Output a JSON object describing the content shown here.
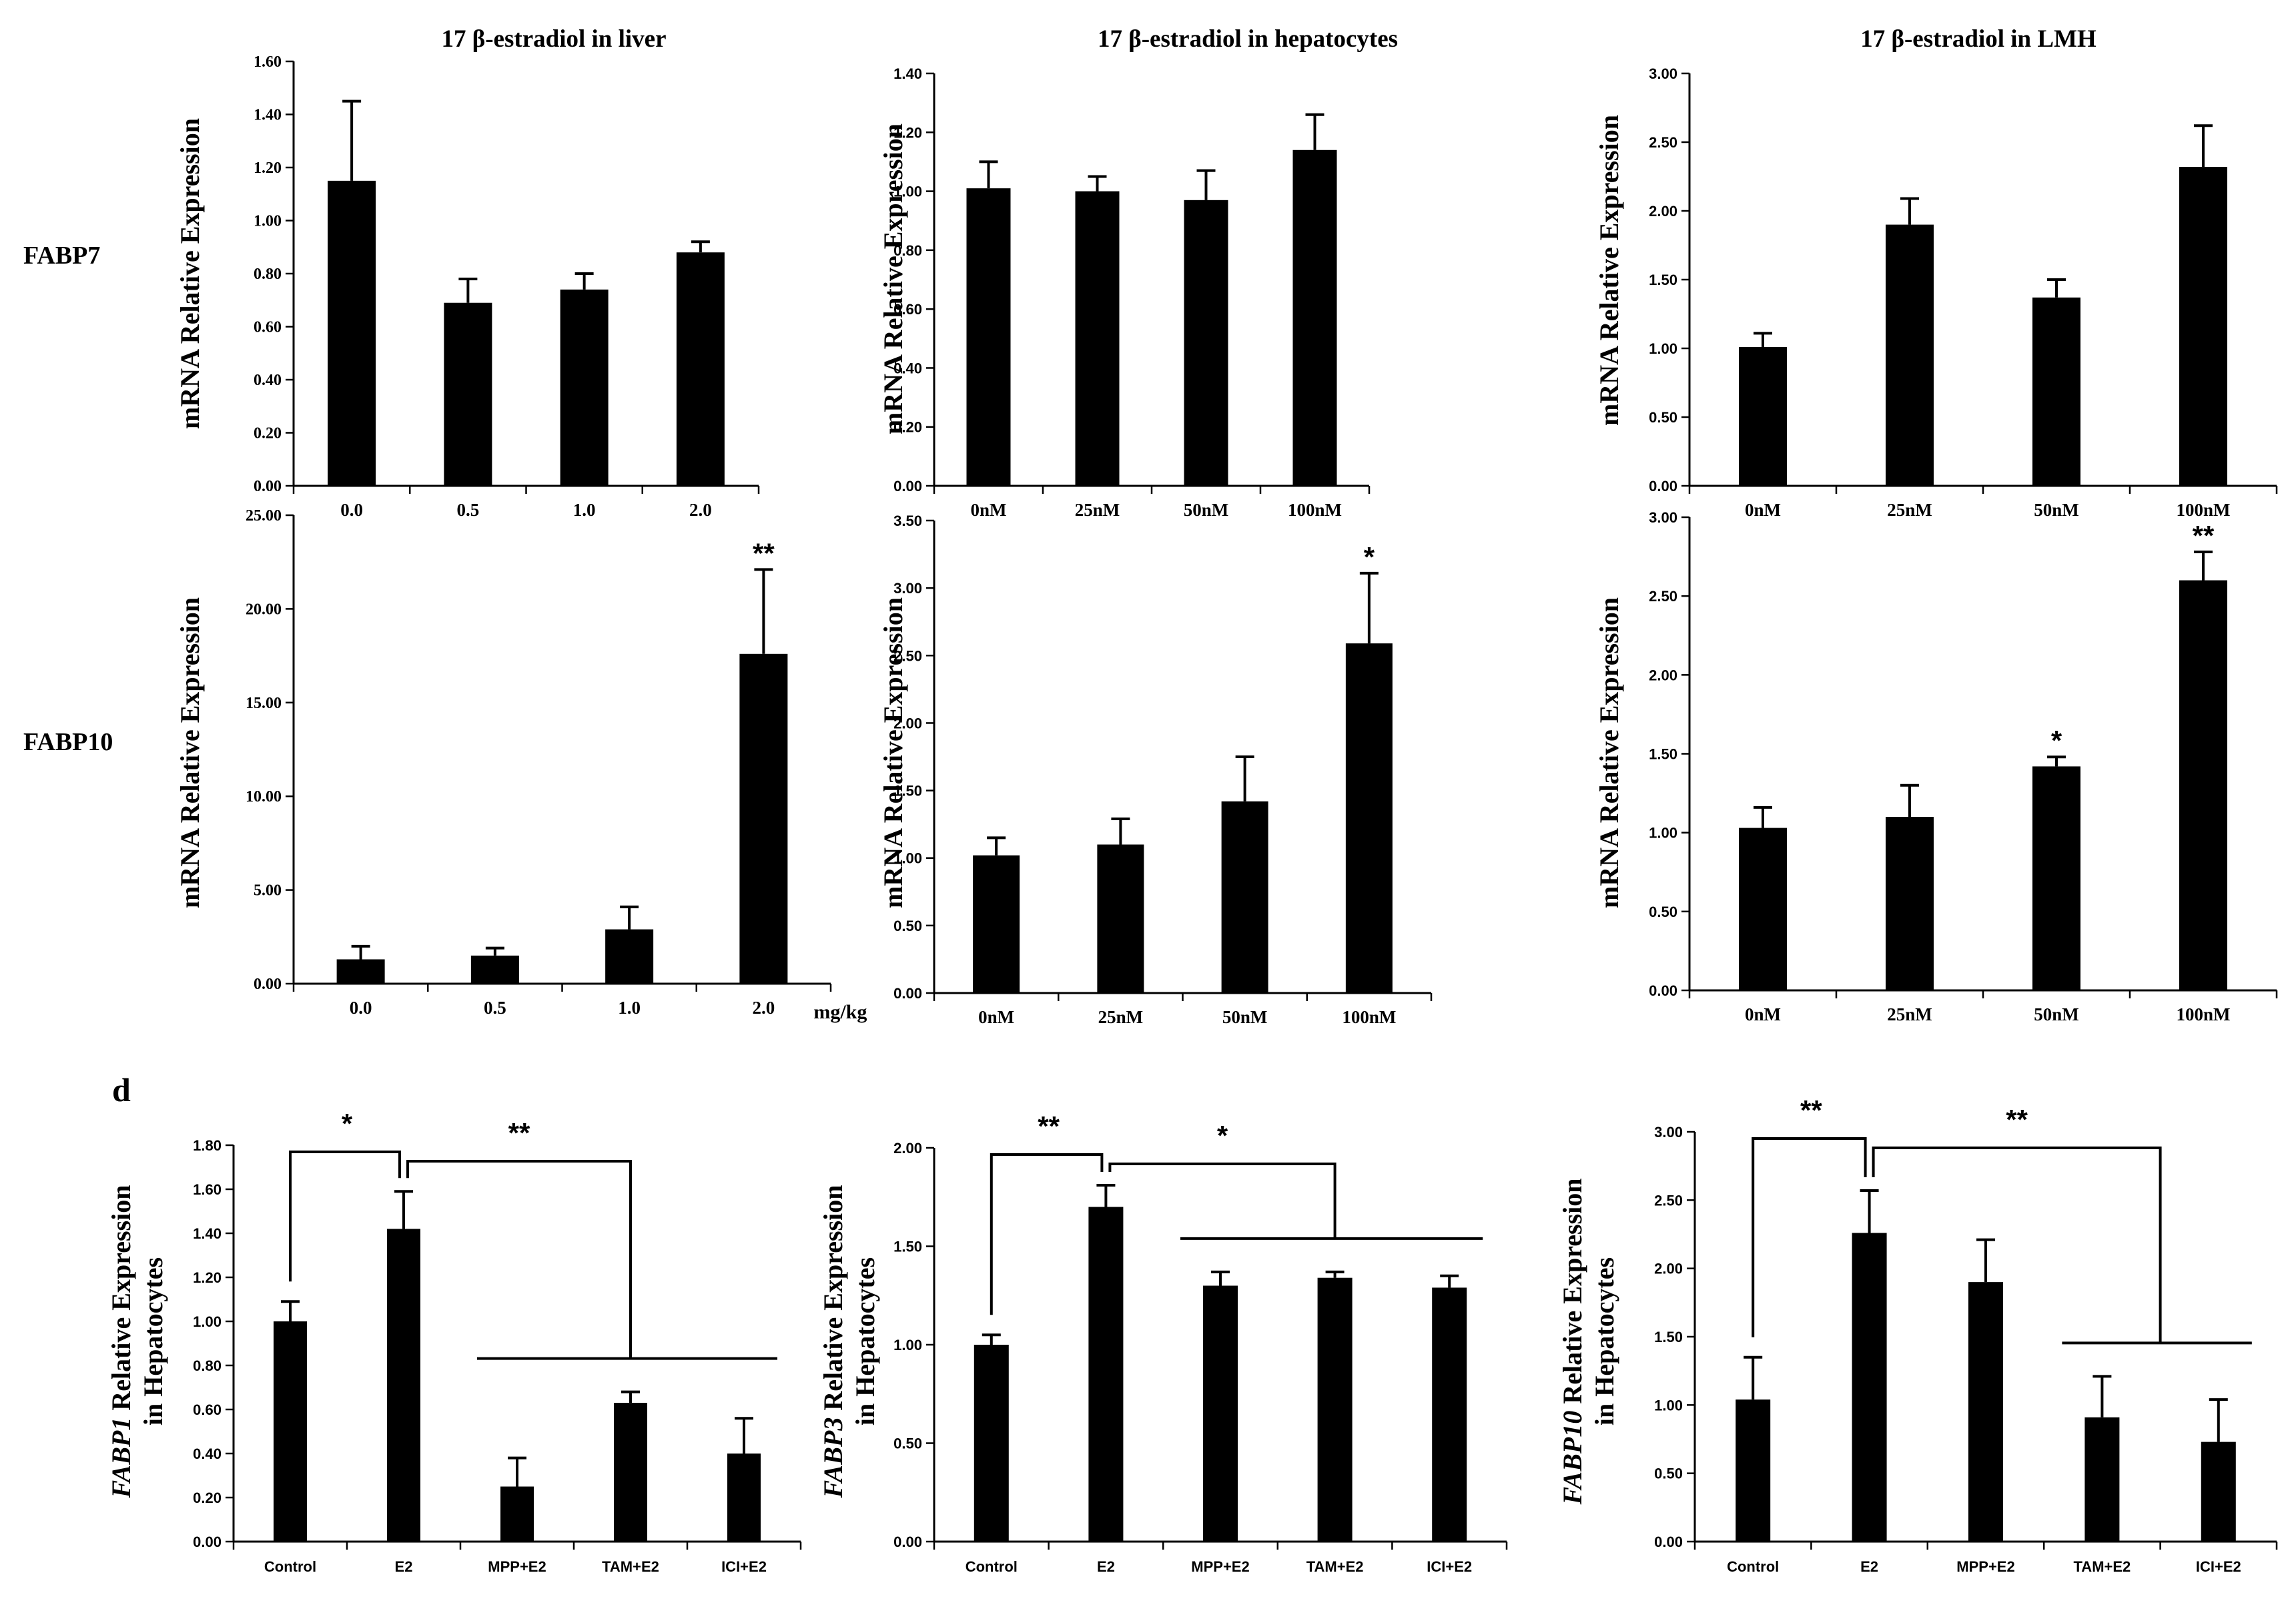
{
  "colors": {
    "bar": "#000000",
    "axis": "#000000",
    "background": "#ffffff"
  },
  "row_labels": [
    "FABP7",
    "FABP10"
  ],
  "panel_label": "d",
  "unit_label": "mg/kg",
  "chart_data": [
    {
      "id": "fabp7-liver",
      "type": "bar",
      "title": "17 β-estradiol in liver",
      "ylabel": "mRNA Relative Expression",
      "categories": [
        "0.0",
        "0.5",
        "1.0",
        "2.0"
      ],
      "values": [
        1.15,
        0.69,
        0.74,
        0.88
      ],
      "errors": [
        0.3,
        0.09,
        0.06,
        0.04
      ],
      "ylim": [
        0,
        1.6
      ],
      "yticks": [
        "0.00",
        "0.20",
        "0.40",
        "0.60",
        "0.80",
        "1.00",
        "1.20",
        "1.40",
        "1.60"
      ],
      "annotations": [
        "",
        "",
        "",
        ""
      ]
    },
    {
      "id": "fabp7-hepatocytes",
      "type": "bar",
      "title": "17 β-estradiol in hepatocytes",
      "ylabel": "mRNA Relative Expression",
      "categories": [
        "0nM",
        "25nM",
        "50nM",
        "100nM"
      ],
      "values": [
        1.01,
        1.0,
        0.97,
        1.14
      ],
      "errors": [
        0.09,
        0.05,
        0.1,
        0.12
      ],
      "ylim": [
        0,
        1.4
      ],
      "yticks": [
        "0.00",
        "0.20",
        "0.40",
        "0.60",
        "0.80",
        "1.00",
        "1.20",
        "1.40"
      ],
      "annotations": [
        "",
        "",
        "",
        ""
      ]
    },
    {
      "id": "fabp7-lmh",
      "type": "bar",
      "title": "17 β-estradiol in LMH",
      "ylabel": "mRNA Relative Expression",
      "categories": [
        "0nM",
        "25nM",
        "50nM",
        "100nM"
      ],
      "values": [
        1.01,
        1.9,
        1.37,
        2.32
      ],
      "errors": [
        0.1,
        0.19,
        0.13,
        0.3
      ],
      "ylim": [
        0,
        3.0
      ],
      "yticks": [
        "0.00",
        "0.50",
        "1.00",
        "1.50",
        "2.00",
        "2.50",
        "3.00"
      ],
      "annotations": [
        "",
        "",
        "",
        ""
      ]
    },
    {
      "id": "fabp10-liver",
      "type": "bar",
      "title": "",
      "ylabel": "mRNA Relative Expression",
      "categories": [
        "0.0",
        "0.5",
        "1.0",
        "2.0"
      ],
      "values": [
        1.3,
        1.5,
        2.9,
        17.6
      ],
      "errors": [
        0.7,
        0.4,
        1.2,
        4.5
      ],
      "ylim": [
        0,
        25
      ],
      "yticks": [
        "0.00",
        "5.00",
        "10.00",
        "15.00",
        "20.00",
        "25.00"
      ],
      "annotations": [
        "",
        "",
        "",
        "**"
      ]
    },
    {
      "id": "fabp10-hepatocytes",
      "type": "bar",
      "title": "",
      "ylabel": "mRNA Relative Expression",
      "categories": [
        "0nM",
        "25nM",
        "50nM",
        "100nM"
      ],
      "values": [
        1.02,
        1.1,
        1.42,
        2.59
      ],
      "errors": [
        0.13,
        0.19,
        0.33,
        0.52
      ],
      "ylim": [
        0,
        3.5
      ],
      "yticks": [
        "0.00",
        "0.50",
        "1.00",
        "1.50",
        "2.00",
        "2.50",
        "3.00",
        "3.50"
      ],
      "annotations": [
        "",
        "",
        "",
        "*"
      ]
    },
    {
      "id": "fabp10-lmh",
      "type": "bar",
      "title": "",
      "ylabel": "mRNA Relative Expression",
      "categories": [
        "0nM",
        "25nM",
        "50nM",
        "100nM"
      ],
      "values": [
        1.03,
        1.1,
        1.42,
        2.6
      ],
      "errors": [
        0.13,
        0.2,
        0.06,
        0.18
      ],
      "ylim": [
        0,
        3.0
      ],
      "yticks": [
        "0.00",
        "0.50",
        "1.00",
        "1.50",
        "2.00",
        "2.50",
        "3.00"
      ],
      "annotations": [
        "",
        "",
        "*",
        "**"
      ]
    },
    {
      "id": "fabp1-treatments",
      "type": "bar",
      "title": "",
      "ylabel_gene": "FABP1",
      "ylabel_rest": " Relative Expression",
      "ylabel_line2": "in Hepatocytes",
      "categories": [
        "Control",
        "E2",
        "MPP+E2",
        "TAM+E2",
        "ICI+E2"
      ],
      "values": [
        1.0,
        1.42,
        0.25,
        0.63,
        0.4
      ],
      "errors": [
        0.09,
        0.17,
        0.13,
        0.05,
        0.16
      ],
      "ylim": [
        0,
        1.8
      ],
      "yticks": [
        "0.00",
        "0.20",
        "0.40",
        "0.60",
        "0.80",
        "1.00",
        "1.20",
        "1.40",
        "1.60",
        "1.80"
      ],
      "comparisons": [
        {
          "label": "*",
          "from": "Control",
          "to": "E2"
        },
        {
          "label": "**",
          "from": "E2",
          "to": [
            "MPP+E2",
            "TAM+E2",
            "ICI+E2"
          ]
        }
      ]
    },
    {
      "id": "fabp3-treatments",
      "type": "bar",
      "title": "",
      "ylabel_gene": "FABP3",
      "ylabel_rest": " Relative Expression",
      "ylabel_line2": "in Hepatocytes",
      "categories": [
        "Control",
        "E2",
        "MPP+E2",
        "TAM+E2",
        "ICI+E2"
      ],
      "values": [
        1.0,
        1.7,
        1.3,
        1.34,
        1.29
      ],
      "errors": [
        0.05,
        0.11,
        0.07,
        0.03,
        0.06
      ],
      "ylim": [
        0,
        2.0
      ],
      "yticks": [
        "0.00",
        "0.50",
        "1.00",
        "1.50",
        "2.00"
      ],
      "comparisons": [
        {
          "label": "**",
          "from": "Control",
          "to": "E2"
        },
        {
          "label": "*",
          "from": "E2",
          "to": [
            "MPP+E2",
            "TAM+E2",
            "ICI+E2"
          ]
        }
      ]
    },
    {
      "id": "fabp10-treatments",
      "type": "bar",
      "title": "",
      "ylabel_gene": "FABP10",
      "ylabel_rest": " Relative Expression",
      "ylabel_line2": "in Hepatocytes",
      "categories": [
        "Control",
        "E2",
        "MPP+E2",
        "TAM+E2",
        "ICI+E2"
      ],
      "values": [
        1.04,
        2.26,
        1.9,
        0.91,
        0.73
      ],
      "errors": [
        0.31,
        0.31,
        0.31,
        0.3,
        0.31
      ],
      "ylim": [
        0,
        3.0
      ],
      "yticks": [
        "0.00",
        "0.50",
        "1.00",
        "1.50",
        "2.00",
        "2.50",
        "3.00"
      ],
      "comparisons": [
        {
          "label": "**",
          "from": "Control",
          "to": "E2"
        },
        {
          "label": "**",
          "from": "E2",
          "to": [
            "TAM+E2",
            "ICI+E2"
          ]
        }
      ]
    }
  ]
}
